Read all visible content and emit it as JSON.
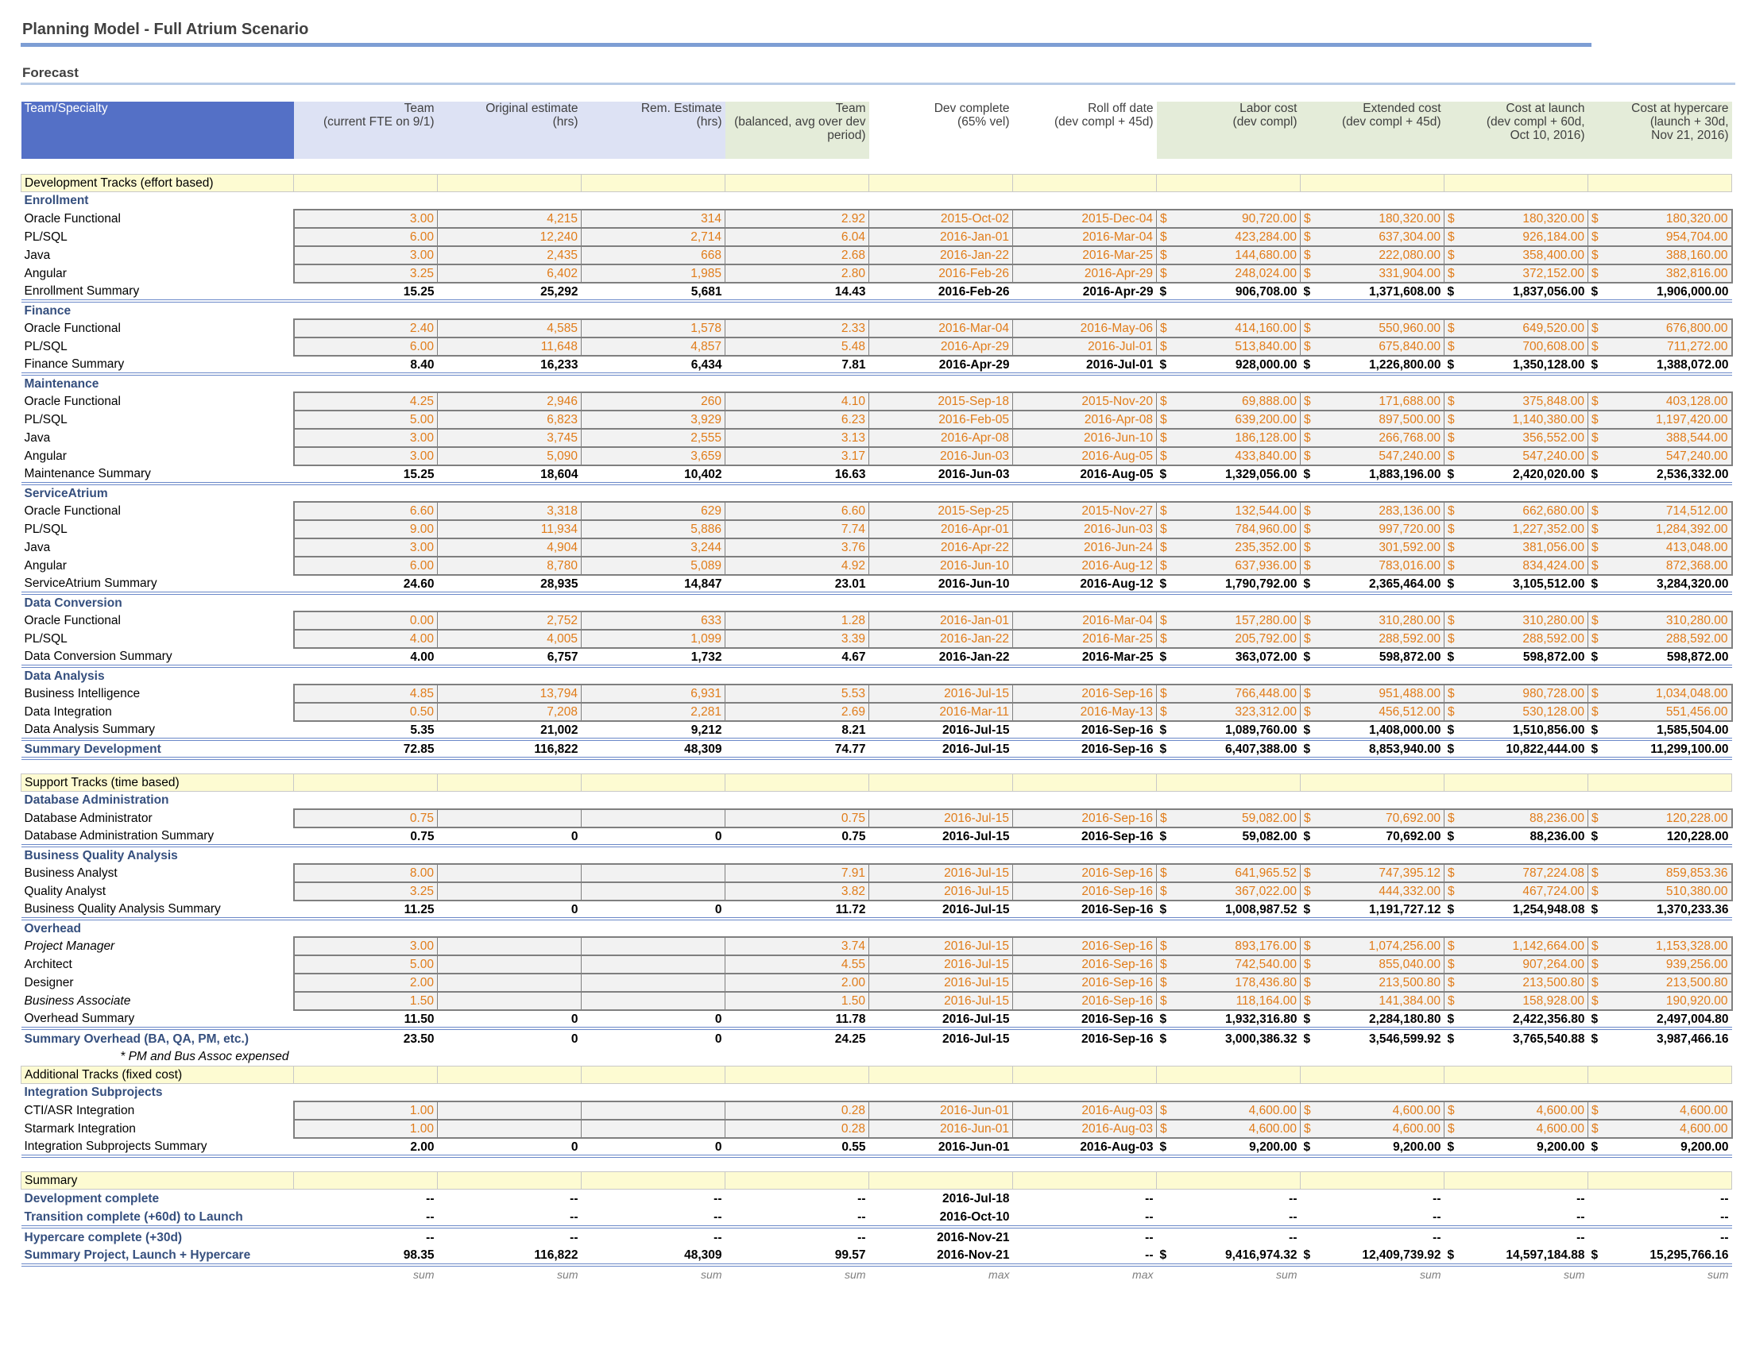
{
  "title": "Planning Model - Full Atrium Scenario",
  "subtitle": "Forecast",
  "headers": [
    "Team/Specialty",
    "Team\n(current FTE on 9/1)",
    "Original estimate\n(hrs)",
    "Rem. Estimate\n(hrs)",
    "Team\n(balanced, avg over dev\nperiod)",
    "Dev complete\n(65% vel)",
    "Roll off date\n(dev compl + 45d)",
    "Labor cost\n(dev compl)",
    "Extended cost\n(dev compl + 45d)",
    "Cost at launch\n(dev compl + 60d,\nOct 10, 2016)",
    "Cost at hypercare\n(launch + 30d,\nNov 21, 2016)"
  ],
  "rows": [
    {
      "k": "spacer"
    },
    {
      "k": "section",
      "label": "Development Tracks (effort based)"
    },
    {
      "k": "group",
      "label": "Enrollment"
    },
    {
      "k": "input",
      "label": "Oracle Functional",
      "v": [
        "3.00",
        "4,215",
        "314",
        "2.92",
        "2015-Oct-02",
        "2015-Dec-04",
        "90,720.00",
        "180,320.00",
        "180,320.00",
        "180,320.00"
      ]
    },
    {
      "k": "input",
      "label": "PL/SQL",
      "v": [
        "6.00",
        "12,240",
        "2,714",
        "6.04",
        "2016-Jan-01",
        "2016-Mar-04",
        "423,284.00",
        "637,304.00",
        "926,184.00",
        "954,704.00"
      ]
    },
    {
      "k": "input",
      "label": "Java",
      "v": [
        "3.00",
        "2,435",
        "668",
        "2.68",
        "2016-Jan-22",
        "2016-Mar-25",
        "144,680.00",
        "222,080.00",
        "358,400.00",
        "388,160.00"
      ]
    },
    {
      "k": "input",
      "label": "Angular",
      "v": [
        "3.25",
        "6,402",
        "1,985",
        "2.80",
        "2016-Feb-26",
        "2016-Apr-29",
        "248,024.00",
        "331,904.00",
        "372,152.00",
        "382,816.00"
      ]
    },
    {
      "k": "sum",
      "label": "Enrollment Summary",
      "v": [
        "15.25",
        "25,292",
        "5,681",
        "14.43",
        "2016-Feb-26",
        "2016-Apr-29",
        "906,708.00",
        "1,371,608.00",
        "1,837,056.00",
        "1,906,000.00"
      ]
    },
    {
      "k": "group",
      "label": "Finance"
    },
    {
      "k": "input",
      "label": "Oracle Functional",
      "v": [
        "2.40",
        "4,585",
        "1,578",
        "2.33",
        "2016-Mar-04",
        "2016-May-06",
        "414,160.00",
        "550,960.00",
        "649,520.00",
        "676,800.00"
      ]
    },
    {
      "k": "input",
      "label": "PL/SQL",
      "v": [
        "6.00",
        "11,648",
        "4,857",
        "5.48",
        "2016-Apr-29",
        "2016-Jul-01",
        "513,840.00",
        "675,840.00",
        "700,608.00",
        "711,272.00"
      ]
    },
    {
      "k": "sum",
      "label": "Finance Summary",
      "v": [
        "8.40",
        "16,233",
        "6,434",
        "7.81",
        "2016-Apr-29",
        "2016-Jul-01",
        "928,000.00",
        "1,226,800.00",
        "1,350,128.00",
        "1,388,072.00"
      ]
    },
    {
      "k": "group",
      "label": "Maintenance"
    },
    {
      "k": "input",
      "label": "Oracle Functional",
      "v": [
        "4.25",
        "2,946",
        "260",
        "4.10",
        "2015-Sep-18",
        "2015-Nov-20",
        "69,888.00",
        "171,688.00",
        "375,848.00",
        "403,128.00"
      ]
    },
    {
      "k": "input",
      "label": "PL/SQL",
      "v": [
        "5.00",
        "6,823",
        "3,929",
        "6.23",
        "2016-Feb-05",
        "2016-Apr-08",
        "639,200.00",
        "897,500.00",
        "1,140,380.00",
        "1,197,420.00"
      ]
    },
    {
      "k": "input",
      "label": "Java",
      "v": [
        "3.00",
        "3,745",
        "2,555",
        "3.13",
        "2016-Apr-08",
        "2016-Jun-10",
        "186,128.00",
        "266,768.00",
        "356,552.00",
        "388,544.00"
      ]
    },
    {
      "k": "input",
      "label": "Angular",
      "v": [
        "3.00",
        "5,090",
        "3,659",
        "3.17",
        "2016-Jun-03",
        "2016-Aug-05",
        "433,840.00",
        "547,240.00",
        "547,240.00",
        "547,240.00"
      ]
    },
    {
      "k": "sum",
      "label": "Maintenance Summary",
      "v": [
        "15.25",
        "18,604",
        "10,402",
        "16.63",
        "2016-Jun-03",
        "2016-Aug-05",
        "1,329,056.00",
        "1,883,196.00",
        "2,420,020.00",
        "2,536,332.00"
      ]
    },
    {
      "k": "group",
      "label": "ServiceAtrium"
    },
    {
      "k": "input",
      "label": "Oracle Functional",
      "v": [
        "6.60",
        "3,318",
        "629",
        "6.60",
        "2015-Sep-25",
        "2015-Nov-27",
        "132,544.00",
        "283,136.00",
        "662,680.00",
        "714,512.00"
      ]
    },
    {
      "k": "input",
      "label": "PL/SQL",
      "v": [
        "9.00",
        "11,934",
        "5,886",
        "7.74",
        "2016-Apr-01",
        "2016-Jun-03",
        "784,960.00",
        "997,720.00",
        "1,227,352.00",
        "1,284,392.00"
      ]
    },
    {
      "k": "input",
      "label": "Java",
      "v": [
        "3.00",
        "4,904",
        "3,244",
        "3.76",
        "2016-Apr-22",
        "2016-Jun-24",
        "235,352.00",
        "301,592.00",
        "381,056.00",
        "413,048.00"
      ]
    },
    {
      "k": "input",
      "label": "Angular",
      "v": [
        "6.00",
        "8,780",
        "5,089",
        "4.92",
        "2016-Jun-10",
        "2016-Aug-12",
        "637,936.00",
        "783,016.00",
        "834,424.00",
        "872,368.00"
      ]
    },
    {
      "k": "sum",
      "label": "ServiceAtrium Summary",
      "v": [
        "24.60",
        "28,935",
        "14,847",
        "23.01",
        "2016-Jun-10",
        "2016-Aug-12",
        "1,790,792.00",
        "2,365,464.00",
        "3,105,512.00",
        "3,284,320.00"
      ]
    },
    {
      "k": "group",
      "label": "Data Conversion"
    },
    {
      "k": "input",
      "label": "Oracle Functional",
      "v": [
        "0.00",
        "2,752",
        "633",
        "1.28",
        "2016-Jan-01",
        "2016-Mar-04",
        "157,280.00",
        "310,280.00",
        "310,280.00",
        "310,280.00"
      ]
    },
    {
      "k": "input",
      "label": "PL/SQL",
      "v": [
        "4.00",
        "4,005",
        "1,099",
        "3.39",
        "2016-Jan-22",
        "2016-Mar-25",
        "205,792.00",
        "288,592.00",
        "288,592.00",
        "288,592.00"
      ]
    },
    {
      "k": "sum",
      "label": "Data Conversion Summary",
      "v": [
        "4.00",
        "6,757",
        "1,732",
        "4.67",
        "2016-Jan-22",
        "2016-Mar-25",
        "363,072.00",
        "598,872.00",
        "598,872.00",
        "598,872.00"
      ]
    },
    {
      "k": "group",
      "label": "Data Analysis"
    },
    {
      "k": "input",
      "label": "Business Intelligence",
      "v": [
        "4.85",
        "13,794",
        "6,931",
        "5.53",
        "2016-Jul-15",
        "2016-Sep-16",
        "766,448.00",
        "951,488.00",
        "980,728.00",
        "1,034,048.00"
      ]
    },
    {
      "k": "input",
      "label": "Data Integration",
      "v": [
        "0.50",
        "7,208",
        "2,281",
        "2.69",
        "2016-Mar-11",
        "2016-May-13",
        "323,312.00",
        "456,512.00",
        "530,128.00",
        "551,456.00"
      ]
    },
    {
      "k": "sum",
      "label": "Data Analysis Summary",
      "v": [
        "5.35",
        "21,002",
        "9,212",
        "8.21",
        "2016-Jul-15",
        "2016-Sep-16",
        "1,089,760.00",
        "1,408,000.00",
        "1,510,856.00",
        "1,585,504.00"
      ]
    },
    {
      "k": "total",
      "label": "Summary Development",
      "v": [
        "72.85",
        "116,822",
        "48,309",
        "74.77",
        "2016-Jul-15",
        "2016-Sep-16",
        "6,407,388.00",
        "8,853,940.00",
        "10,822,444.00",
        "11,299,100.00"
      ]
    },
    {
      "k": "spacer"
    },
    {
      "k": "section",
      "label": "Support Tracks (time based)"
    },
    {
      "k": "group",
      "label": "Database Administration"
    },
    {
      "k": "input",
      "label": "Database Administrator",
      "v": [
        "0.75",
        "",
        "",
        "0.75",
        "2016-Jul-15",
        "2016-Sep-16",
        "59,082.00",
        "70,692.00",
        "88,236.00",
        "120,228.00"
      ]
    },
    {
      "k": "sum",
      "label": "Database Administration Summary",
      "v": [
        "0.75",
        "0",
        "0",
        "0.75",
        "2016-Jul-15",
        "2016-Sep-16",
        "59,082.00",
        "70,692.00",
        "88,236.00",
        "120,228.00"
      ]
    },
    {
      "k": "group",
      "label": "Business Quality Analysis"
    },
    {
      "k": "input",
      "label": "Business Analyst",
      "v": [
        "8.00",
        "",
        "",
        "7.91",
        "2016-Jul-15",
        "2016-Sep-16",
        "641,965.52",
        "747,395.12",
        "787,224.08",
        "859,853.36"
      ]
    },
    {
      "k": "input",
      "label": "Quality Analyst",
      "v": [
        "3.25",
        "",
        "",
        "3.82",
        "2016-Jul-15",
        "2016-Sep-16",
        "367,022.00",
        "444,332.00",
        "467,724.00",
        "510,380.00"
      ]
    },
    {
      "k": "sum",
      "label": "Business Quality Analysis Summary",
      "v": [
        "11.25",
        "0",
        "0",
        "11.72",
        "2016-Jul-15",
        "2016-Sep-16",
        "1,008,987.52",
        "1,191,727.12",
        "1,254,948.08",
        "1,370,233.36"
      ]
    },
    {
      "k": "group",
      "label": "Overhead"
    },
    {
      "k": "input",
      "label": "Project Manager",
      "it": true,
      "v": [
        "3.00",
        "",
        "",
        "3.74",
        "2016-Jul-15",
        "2016-Sep-16",
        "893,176.00",
        "1,074,256.00",
        "1,142,664.00",
        "1,153,328.00"
      ]
    },
    {
      "k": "input",
      "label": "Architect",
      "v": [
        "5.00",
        "",
        "",
        "4.55",
        "2016-Jul-15",
        "2016-Sep-16",
        "742,540.00",
        "855,040.00",
        "907,264.00",
        "939,256.00"
      ]
    },
    {
      "k": "input",
      "label": "Designer",
      "v": [
        "2.00",
        "",
        "",
        "2.00",
        "2016-Jul-15",
        "2016-Sep-16",
        "178,436.80",
        "213,500.80",
        "213,500.80",
        "213,500.80"
      ]
    },
    {
      "k": "input",
      "label": "Business Associate",
      "it": true,
      "v": [
        "1.50",
        "",
        "",
        "1.50",
        "2016-Jul-15",
        "2016-Sep-16",
        "118,164.00",
        "141,384.00",
        "158,928.00",
        "190,920.00"
      ]
    },
    {
      "k": "sum",
      "label": "Overhead Summary",
      "v": [
        "11.50",
        "0",
        "0",
        "11.78",
        "2016-Jul-15",
        "2016-Sep-16",
        "1,932,316.80",
        "2,284,180.80",
        "2,422,356.80",
        "2,497,004.80"
      ]
    },
    {
      "k": "total",
      "label": "Summary Overhead (BA, QA, PM, etc.)",
      "v": [
        "23.50",
        "0",
        "0",
        "24.25",
        "2016-Jul-15",
        "2016-Sep-16",
        "3,000,386.32",
        "3,546,599.92",
        "3,765,540.88",
        "3,987,466.16"
      ]
    },
    {
      "k": "note",
      "label": "* PM and Bus Assoc expensed"
    },
    {
      "k": "section",
      "label": "Additional Tracks (fixed cost)"
    },
    {
      "k": "group",
      "label": "Integration Subprojects"
    },
    {
      "k": "input",
      "label": "CTI/ASR Integration",
      "v": [
        "1.00",
        "",
        "",
        "0.28",
        "2016-Jun-01",
        "2016-Aug-03",
        "4,600.00",
        "4,600.00",
        "4,600.00",
        "4,600.00"
      ]
    },
    {
      "k": "input",
      "label": "Starmark Integration",
      "v": [
        "1.00",
        "",
        "",
        "0.28",
        "2016-Jun-01",
        "2016-Aug-03",
        "4,600.00",
        "4,600.00",
        "4,600.00",
        "4,600.00"
      ]
    },
    {
      "k": "sum",
      "label": "Integration Subprojects Summary",
      "v": [
        "2.00",
        "0",
        "0",
        "0.55",
        "2016-Jun-01",
        "2016-Aug-03",
        "9,200.00",
        "9,200.00",
        "9,200.00",
        "9,200.00"
      ]
    },
    {
      "k": "spacer"
    },
    {
      "k": "section",
      "label": "Summary"
    },
    {
      "k": "total",
      "label": "Development complete",
      "v": [
        "--",
        "--",
        "--",
        "--",
        "2016-Jul-18",
        "--",
        "--",
        "--",
        "--",
        "--"
      ],
      "nd": true
    },
    {
      "k": "total",
      "label": "Transition complete (+60d) to Launch",
      "v": [
        "--",
        "--",
        "--",
        "--",
        "2016-Oct-10",
        "--",
        "--",
        "--",
        "--",
        "--"
      ],
      "nd": true
    },
    {
      "k": "total",
      "label": "Hypercare complete (+30d)",
      "v": [
        "--",
        "--",
        "--",
        "--",
        "2016-Nov-21",
        "--",
        "--",
        "--",
        "--",
        "--"
      ],
      "nd": true
    },
    {
      "k": "total",
      "label": "Summary Project, Launch + Hypercare",
      "v": [
        "98.35",
        "116,822",
        "48,309",
        "99.57",
        "2016-Nov-21",
        "--",
        "9,416,974.32",
        "12,409,739.92",
        "14,597,184.88",
        "15,295,766.16"
      ]
    },
    {
      "k": "agg",
      "v": [
        "sum",
        "sum",
        "sum",
        "sum",
        "max",
        "max",
        "sum",
        "sum",
        "sum",
        "sum"
      ]
    }
  ],
  "currency_symbol": "$",
  "colors": {
    "input_text": "#e07c1a",
    "header_blue": "#5470c6",
    "section_fill": "#fdfbd2",
    "rule": "#7d9ed4"
  }
}
